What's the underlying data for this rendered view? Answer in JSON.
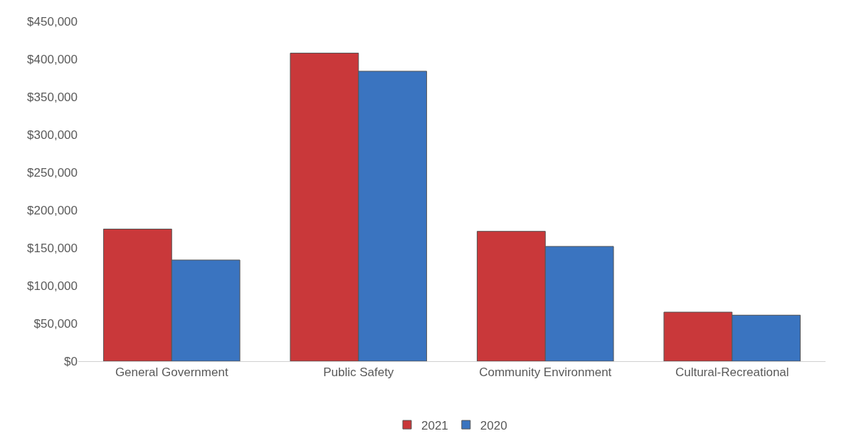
{
  "chart_data": {
    "type": "bar",
    "categories": [
      "General Government",
      "Public Safety",
      "Community Environment",
      "Cultural-Recreational"
    ],
    "series": [
      {
        "name": "2021",
        "color": "#c9383a",
        "values": [
          175000,
          408000,
          172000,
          65000
        ]
      },
      {
        "name": "2020",
        "color": "#3a74c0",
        "values": [
          134000,
          384000,
          152000,
          61000
        ]
      }
    ],
    "ylim": [
      0,
      450000
    ],
    "yticks": [
      {
        "value": 0,
        "label": "$0"
      },
      {
        "value": 50000,
        "label": "$50,000"
      },
      {
        "value": 100000,
        "label": "$100,000"
      },
      {
        "value": 150000,
        "label": "$150,000"
      },
      {
        "value": 200000,
        "label": "$200,000"
      },
      {
        "value": 250000,
        "label": "$250,000"
      },
      {
        "value": 300000,
        "label": "$300,000"
      },
      {
        "value": 350000,
        "label": "$350,000"
      },
      {
        "value": 400000,
        "label": "$400,000"
      },
      {
        "value": 450000,
        "label": "$450,000"
      }
    ],
    "legend": "bottom"
  }
}
